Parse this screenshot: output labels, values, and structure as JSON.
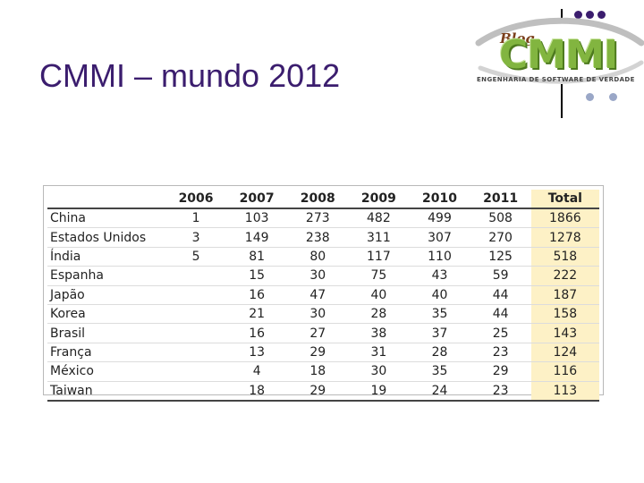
{
  "slide": {
    "title": "CMMI – mundo 2012"
  },
  "logo": {
    "blog": "Blog",
    "cmmi": "CMMI",
    "tagline": "ENGENHARIA DE SOFTWARE DE VERDADE"
  },
  "table": {
    "headers": [
      "",
      "2006",
      "2007",
      "2008",
      "2009",
      "2010",
      "2011",
      "Total"
    ],
    "rows": [
      [
        "China",
        "1",
        "103",
        "273",
        "482",
        "499",
        "508",
        "1866"
      ],
      [
        "Estados Unidos",
        "3",
        "149",
        "238",
        "311",
        "307",
        "270",
        "1278"
      ],
      [
        "Índia",
        "5",
        "81",
        "80",
        "117",
        "110",
        "125",
        "518"
      ],
      [
        "Espanha",
        "",
        "15",
        "30",
        "75",
        "43",
        "59",
        "222"
      ],
      [
        "Japão",
        "",
        "16",
        "47",
        "40",
        "40",
        "44",
        "187"
      ],
      [
        "Korea",
        "",
        "21",
        "30",
        "28",
        "35",
        "44",
        "158"
      ],
      [
        "Brasil",
        "",
        "16",
        "27",
        "38",
        "37",
        "25",
        "143"
      ],
      [
        "França",
        "",
        "13",
        "29",
        "31",
        "28",
        "23",
        "124"
      ],
      [
        "México",
        "",
        "4",
        "18",
        "30",
        "35",
        "29",
        "116"
      ],
      [
        "Taiwan",
        "",
        "18",
        "29",
        "19",
        "24",
        "23",
        "113"
      ]
    ]
  },
  "colors": {
    "title": "#3b1d6e",
    "logo_green": "#82b540",
    "total_highlight": "#fdf1c6"
  }
}
